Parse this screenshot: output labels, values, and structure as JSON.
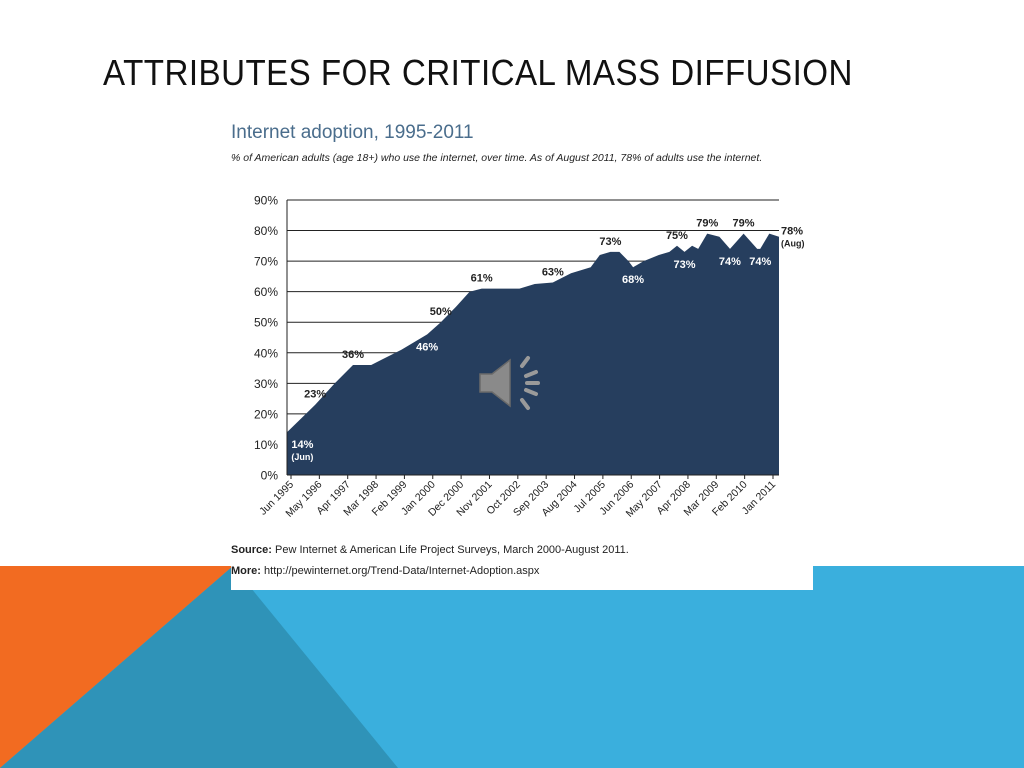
{
  "slide": {
    "title": "ATTRIBUTES FOR CRITICAL MASS DIFFUSION",
    "colors": {
      "orange": "#F26B21",
      "blue": "#3AAFDD",
      "dark_blue": "#2E8FB3"
    }
  },
  "chart_data": {
    "type": "area",
    "title": "Internet adoption, 1995-2011",
    "subtitle": "% of American adults (age 18+) who use the internet, over time. As of August 2011, 78% of adults use the internet.",
    "xlabel": "",
    "ylabel": "",
    "ylim": [
      0,
      90
    ],
    "yticks": [
      "0%",
      "10%",
      "20%",
      "30%",
      "40%",
      "50%",
      "60%",
      "70%",
      "80%",
      "90%"
    ],
    "x_tick_labels": [
      "Jun 1995",
      "May 1996",
      "Apr 1997",
      "Mar 1998",
      "Feb 1999",
      "Jan 2000",
      "Dec 2000",
      "Nov 2001",
      "Oct 2002",
      "Sep 2003",
      "Aug 2004",
      "Jul 2005",
      "Jun 2006",
      "May 2007",
      "Apr 2008",
      "Mar 2009",
      "Feb 2010",
      "Jan 2011"
    ],
    "x_range": [
      1995.42,
      2011.67
    ],
    "series": [
      {
        "color": "#263E5E",
        "points": [
          [
            1995.42,
            14
          ],
          [
            1996.35,
            23
          ],
          [
            1997.0,
            30
          ],
          [
            1997.6,
            36
          ],
          [
            1998.2,
            36
          ],
          [
            1999.2,
            41
          ],
          [
            2000.05,
            46
          ],
          [
            2000.5,
            50
          ],
          [
            2001.0,
            55
          ],
          [
            2001.45,
            60
          ],
          [
            2001.85,
            61
          ],
          [
            2002.6,
            61
          ],
          [
            2003.1,
            61
          ],
          [
            2003.6,
            62.5
          ],
          [
            2004.2,
            63
          ],
          [
            2004.8,
            66
          ],
          [
            2005.45,
            68
          ],
          [
            2005.75,
            72
          ],
          [
            2006.1,
            73
          ],
          [
            2006.4,
            73
          ],
          [
            2006.7,
            70
          ],
          [
            2006.85,
            68
          ],
          [
            2007.2,
            70
          ],
          [
            2007.7,
            72
          ],
          [
            2008.05,
            73
          ],
          [
            2008.3,
            75
          ],
          [
            2008.55,
            73
          ],
          [
            2008.8,
            75
          ],
          [
            2009.0,
            74
          ],
          [
            2009.3,
            79
          ],
          [
            2009.7,
            78
          ],
          [
            2010.05,
            74
          ],
          [
            2010.5,
            79
          ],
          [
            2010.95,
            74
          ],
          [
            2011.05,
            74
          ],
          [
            2011.35,
            79
          ],
          [
            2011.67,
            78
          ]
        ]
      }
    ],
    "annotations": [
      {
        "text": "14%",
        "sub": "(Jun)",
        "x": 1995.5,
        "y": 14,
        "color": "#ffffff"
      },
      {
        "text": "23%",
        "x": 1996.35,
        "y": 23,
        "color": "#222222"
      },
      {
        "text": "36%",
        "x": 1997.6,
        "y": 36,
        "color": "#222222"
      },
      {
        "text": "46%",
        "x": 2000.05,
        "y": 46,
        "color": "#ffffff"
      },
      {
        "text": "50%",
        "x": 2000.5,
        "y": 50,
        "color": "#222222"
      },
      {
        "text": "61%",
        "x": 2001.85,
        "y": 61,
        "color": "#222222"
      },
      {
        "text": "63%",
        "x": 2004.2,
        "y": 63,
        "color": "#222222"
      },
      {
        "text": "73%",
        "x": 2006.1,
        "y": 73,
        "color": "#222222"
      },
      {
        "text": "68%",
        "x": 2006.85,
        "y": 68,
        "color": "#ffffff"
      },
      {
        "text": "75%",
        "x": 2008.3,
        "y": 75,
        "color": "#222222"
      },
      {
        "text": "73%",
        "x": 2008.55,
        "y": 73,
        "color": "#ffffff"
      },
      {
        "text": "79%",
        "x": 2009.3,
        "y": 79,
        "color": "#222222"
      },
      {
        "text": "74%",
        "x": 2010.05,
        "y": 74,
        "color": "#ffffff"
      },
      {
        "text": "79%",
        "x": 2010.5,
        "y": 79,
        "color": "#222222"
      },
      {
        "text": "74%",
        "x": 2011.05,
        "y": 74,
        "color": "#ffffff"
      },
      {
        "text": "78%",
        "sub": "(Aug)",
        "x": 2011.67,
        "y": 78,
        "color": "#222222"
      }
    ],
    "grid": true,
    "legend": "none"
  },
  "source": {
    "label": "Source:",
    "text": "Pew Internet & American Life Project Surveys, March 2000-August 2011.",
    "more_label": "More:",
    "more_text": "http://pewinternet.org/Trend-Data/Internet-Adoption.aspx"
  },
  "media": {
    "icon": "speaker-icon"
  }
}
